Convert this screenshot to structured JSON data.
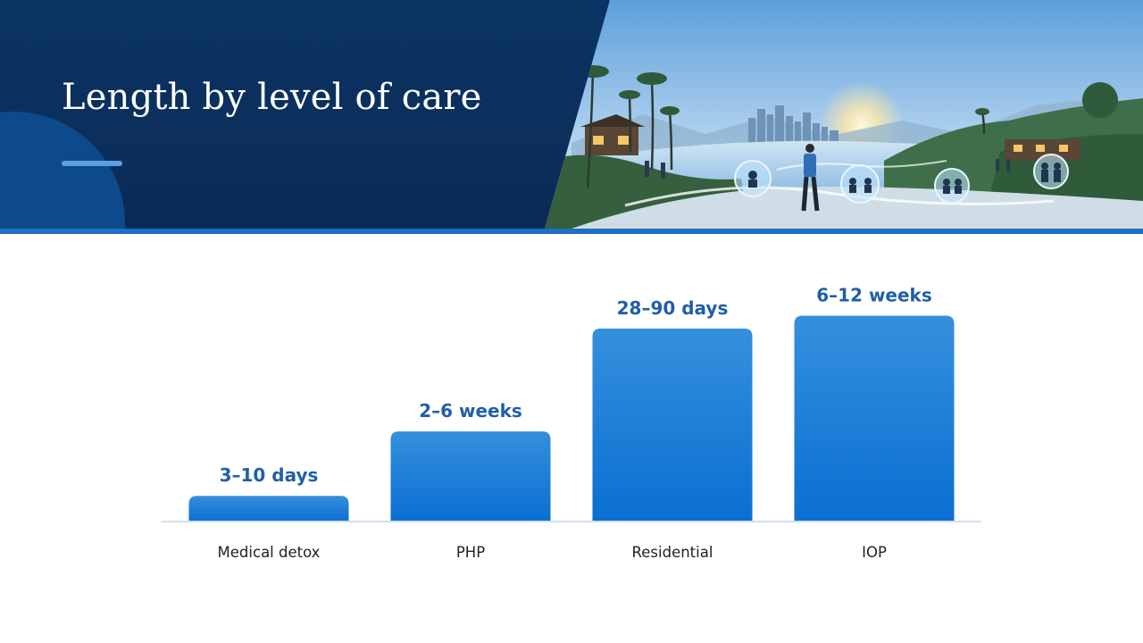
{
  "header": {
    "title": "Length by level of care",
    "scene_icon": "coastal-city-recovery-illustration-icon"
  },
  "colors": {
    "header_navy": "#0a3364",
    "accent_blue": "#1f6fc4",
    "bar_top": "#3590dd",
    "bar_bottom": "#0a6fd2",
    "value_text": "#1f5fa8"
  },
  "chart_data": {
    "type": "bar",
    "title": "Length by level of care",
    "categories": [
      "Medical detox",
      "PHP",
      "Residential",
      "IOP"
    ],
    "values": [
      1,
      3.5,
      7.5,
      8
    ],
    "value_labels": [
      "3–10 days",
      "2–6 weeks",
      "28–90 days",
      "6–12 weeks"
    ],
    "xlabel": "",
    "ylabel": "",
    "ylim": [
      0,
      8.4
    ],
    "grid": false,
    "legend": "none"
  }
}
